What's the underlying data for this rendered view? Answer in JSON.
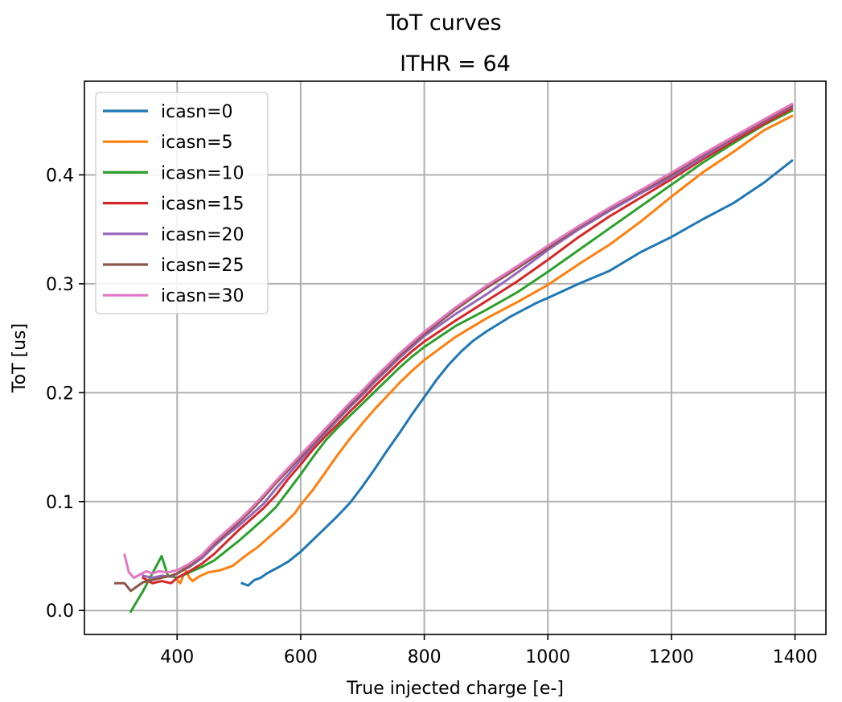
{
  "suptitle": "ToT curves",
  "chart_data": {
    "type": "line",
    "title": "ITHR = 64",
    "xlabel": "True injected charge [e-]",
    "ylabel": "ToT [us]",
    "xlim": [
      250,
      1450
    ],
    "ylim": [
      -0.022,
      0.486
    ],
    "xticks": [
      400,
      600,
      800,
      1000,
      1200,
      1400
    ],
    "yticks": [
      0.0,
      0.1,
      0.2,
      0.3,
      0.4
    ],
    "ytick_labels": [
      "0.0",
      "0.1",
      "0.2",
      "0.3",
      "0.4"
    ],
    "grid": true,
    "legend_position": "top-left",
    "series": [
      {
        "name": "icasn=0",
        "color": "#1f77b4",
        "points": [
          [
            505,
            0.025
          ],
          [
            515,
            0.023
          ],
          [
            525,
            0.028
          ],
          [
            535,
            0.03
          ],
          [
            545,
            0.034
          ],
          [
            565,
            0.04
          ],
          [
            580,
            0.045
          ],
          [
            600,
            0.054
          ],
          [
            620,
            0.065
          ],
          [
            640,
            0.076
          ],
          [
            660,
            0.087
          ],
          [
            680,
            0.099
          ],
          [
            700,
            0.114
          ],
          [
            720,
            0.13
          ],
          [
            740,
            0.147
          ],
          [
            760,
            0.163
          ],
          [
            780,
            0.18
          ],
          [
            800,
            0.196
          ],
          [
            820,
            0.212
          ],
          [
            840,
            0.226
          ],
          [
            860,
            0.238
          ],
          [
            880,
            0.248
          ],
          [
            900,
            0.256
          ],
          [
            920,
            0.263
          ],
          [
            940,
            0.27
          ],
          [
            960,
            0.276
          ],
          [
            980,
            0.282
          ],
          [
            1000,
            0.287
          ],
          [
            1050,
            0.3
          ],
          [
            1100,
            0.312
          ],
          [
            1150,
            0.329
          ],
          [
            1200,
            0.343
          ],
          [
            1250,
            0.359
          ],
          [
            1300,
            0.374
          ],
          [
            1350,
            0.393
          ],
          [
            1395,
            0.413
          ]
        ]
      },
      {
        "name": "icasn=5",
        "color": "#ff7f0e",
        "points": [
          [
            400,
            0.028
          ],
          [
            405,
            0.025
          ],
          [
            410,
            0.032
          ],
          [
            415,
            0.036
          ],
          [
            420,
            0.03
          ],
          [
            425,
            0.027
          ],
          [
            435,
            0.031
          ],
          [
            450,
            0.035
          ],
          [
            470,
            0.037
          ],
          [
            490,
            0.041
          ],
          [
            510,
            0.05
          ],
          [
            530,
            0.058
          ],
          [
            550,
            0.068
          ],
          [
            570,
            0.078
          ],
          [
            590,
            0.089
          ],
          [
            600,
            0.097
          ],
          [
            620,
            0.111
          ],
          [
            640,
            0.127
          ],
          [
            660,
            0.143
          ],
          [
            680,
            0.158
          ],
          [
            700,
            0.172
          ],
          [
            720,
            0.185
          ],
          [
            740,
            0.197
          ],
          [
            760,
            0.209
          ],
          [
            780,
            0.22
          ],
          [
            800,
            0.23
          ],
          [
            850,
            0.251
          ],
          [
            900,
            0.268
          ],
          [
            950,
            0.283
          ],
          [
            1000,
            0.299
          ],
          [
            1050,
            0.318
          ],
          [
            1100,
            0.336
          ],
          [
            1150,
            0.357
          ],
          [
            1200,
            0.38
          ],
          [
            1250,
            0.402
          ],
          [
            1300,
            0.421
          ],
          [
            1350,
            0.441
          ],
          [
            1395,
            0.454
          ]
        ]
      },
      {
        "name": "icasn=10",
        "color": "#2ca02c",
        "points": [
          [
            325,
            -0.001
          ],
          [
            345,
            0.018
          ],
          [
            360,
            0.034
          ],
          [
            375,
            0.05
          ],
          [
            385,
            0.032
          ],
          [
            400,
            0.03
          ],
          [
            420,
            0.035
          ],
          [
            440,
            0.04
          ],
          [
            460,
            0.046
          ],
          [
            480,
            0.055
          ],
          [
            500,
            0.064
          ],
          [
            520,
            0.074
          ],
          [
            540,
            0.084
          ],
          [
            560,
            0.095
          ],
          [
            580,
            0.11
          ],
          [
            600,
            0.125
          ],
          [
            620,
            0.141
          ],
          [
            640,
            0.156
          ],
          [
            660,
            0.168
          ],
          [
            680,
            0.179
          ],
          [
            700,
            0.19
          ],
          [
            720,
            0.201
          ],
          [
            740,
            0.212
          ],
          [
            760,
            0.223
          ],
          [
            780,
            0.233
          ],
          [
            800,
            0.242
          ],
          [
            850,
            0.261
          ],
          [
            900,
            0.276
          ],
          [
            950,
            0.292
          ],
          [
            1000,
            0.311
          ],
          [
            1050,
            0.331
          ],
          [
            1100,
            0.351
          ],
          [
            1150,
            0.371
          ],
          [
            1200,
            0.391
          ],
          [
            1250,
            0.411
          ],
          [
            1300,
            0.429
          ],
          [
            1350,
            0.446
          ],
          [
            1395,
            0.459
          ]
        ]
      },
      {
        "name": "icasn=15",
        "color": "#d62728",
        "points": [
          [
            345,
            0.03
          ],
          [
            360,
            0.025
          ],
          [
            375,
            0.027
          ],
          [
            390,
            0.025
          ],
          [
            400,
            0.03
          ],
          [
            420,
            0.036
          ],
          [
            440,
            0.043
          ],
          [
            460,
            0.052
          ],
          [
            480,
            0.063
          ],
          [
            500,
            0.074
          ],
          [
            520,
            0.084
          ],
          [
            540,
            0.094
          ],
          [
            560,
            0.106
          ],
          [
            580,
            0.121
          ],
          [
            600,
            0.134
          ],
          [
            620,
            0.148
          ],
          [
            640,
            0.16
          ],
          [
            660,
            0.171
          ],
          [
            680,
            0.183
          ],
          [
            700,
            0.194
          ],
          [
            720,
            0.206
          ],
          [
            740,
            0.217
          ],
          [
            760,
            0.228
          ],
          [
            780,
            0.238
          ],
          [
            800,
            0.247
          ],
          [
            850,
            0.266
          ],
          [
            900,
            0.284
          ],
          [
            950,
            0.302
          ],
          [
            1000,
            0.322
          ],
          [
            1050,
            0.343
          ],
          [
            1100,
            0.362
          ],
          [
            1150,
            0.379
          ],
          [
            1200,
            0.396
          ],
          [
            1250,
            0.414
          ],
          [
            1300,
            0.431
          ],
          [
            1350,
            0.447
          ],
          [
            1395,
            0.461
          ]
        ]
      },
      {
        "name": "icasn=20",
        "color": "#9467bd",
        "points": [
          [
            345,
            0.032
          ],
          [
            360,
            0.03
          ],
          [
            375,
            0.032
          ],
          [
            390,
            0.031
          ],
          [
            400,
            0.034
          ],
          [
            420,
            0.04
          ],
          [
            440,
            0.048
          ],
          [
            460,
            0.059
          ],
          [
            480,
            0.069
          ],
          [
            500,
            0.078
          ],
          [
            520,
            0.088
          ],
          [
            540,
            0.098
          ],
          [
            560,
            0.112
          ],
          [
            580,
            0.125
          ],
          [
            600,
            0.138
          ],
          [
            620,
            0.151
          ],
          [
            640,
            0.163
          ],
          [
            660,
            0.175
          ],
          [
            680,
            0.187
          ],
          [
            700,
            0.198
          ],
          [
            720,
            0.21
          ],
          [
            740,
            0.221
          ],
          [
            760,
            0.232
          ],
          [
            780,
            0.242
          ],
          [
            800,
            0.252
          ],
          [
            850,
            0.272
          ],
          [
            900,
            0.29
          ],
          [
            950,
            0.31
          ],
          [
            1000,
            0.331
          ],
          [
            1050,
            0.35
          ],
          [
            1100,
            0.367
          ],
          [
            1150,
            0.383
          ],
          [
            1200,
            0.398
          ],
          [
            1250,
            0.416
          ],
          [
            1300,
            0.433
          ],
          [
            1350,
            0.449
          ],
          [
            1395,
            0.463
          ]
        ]
      },
      {
        "name": "icasn=25",
        "color": "#8c564b",
        "points": [
          [
            300,
            0.025
          ],
          [
            315,
            0.025
          ],
          [
            325,
            0.018
          ],
          [
            335,
            0.022
          ],
          [
            345,
            0.026
          ],
          [
            360,
            0.028
          ],
          [
            375,
            0.03
          ],
          [
            390,
            0.032
          ],
          [
            400,
            0.034
          ],
          [
            420,
            0.041
          ],
          [
            440,
            0.05
          ],
          [
            460,
            0.061
          ],
          [
            480,
            0.071
          ],
          [
            500,
            0.081
          ],
          [
            520,
            0.092
          ],
          [
            540,
            0.104
          ],
          [
            560,
            0.117
          ],
          [
            580,
            0.129
          ],
          [
            600,
            0.141
          ],
          [
            620,
            0.153
          ],
          [
            640,
            0.165
          ],
          [
            660,
            0.177
          ],
          [
            680,
            0.189
          ],
          [
            700,
            0.2
          ],
          [
            720,
            0.212
          ],
          [
            740,
            0.223
          ],
          [
            760,
            0.234
          ],
          [
            780,
            0.244
          ],
          [
            800,
            0.254
          ],
          [
            850,
            0.276
          ],
          [
            900,
            0.296
          ],
          [
            950,
            0.314
          ],
          [
            1000,
            0.333
          ],
          [
            1050,
            0.352
          ],
          [
            1100,
            0.369
          ],
          [
            1150,
            0.385
          ],
          [
            1200,
            0.4
          ],
          [
            1250,
            0.418
          ],
          [
            1300,
            0.434
          ],
          [
            1350,
            0.45
          ],
          [
            1395,
            0.464
          ]
        ]
      },
      {
        "name": "icasn=30",
        "color": "#e377c2",
        "points": [
          [
            315,
            0.051
          ],
          [
            322,
            0.035
          ],
          [
            330,
            0.03
          ],
          [
            340,
            0.033
          ],
          [
            350,
            0.036
          ],
          [
            360,
            0.034
          ],
          [
            370,
            0.036
          ],
          [
            385,
            0.035
          ],
          [
            400,
            0.037
          ],
          [
            420,
            0.043
          ],
          [
            440,
            0.051
          ],
          [
            460,
            0.063
          ],
          [
            480,
            0.073
          ],
          [
            500,
            0.083
          ],
          [
            520,
            0.094
          ],
          [
            540,
            0.106
          ],
          [
            560,
            0.119
          ],
          [
            580,
            0.131
          ],
          [
            600,
            0.143
          ],
          [
            620,
            0.155
          ],
          [
            640,
            0.167
          ],
          [
            660,
            0.179
          ],
          [
            680,
            0.191
          ],
          [
            700,
            0.202
          ],
          [
            720,
            0.214
          ],
          [
            740,
            0.225
          ],
          [
            760,
            0.236
          ],
          [
            780,
            0.246
          ],
          [
            800,
            0.256
          ],
          [
            850,
            0.278
          ],
          [
            900,
            0.298
          ],
          [
            950,
            0.316
          ],
          [
            1000,
            0.335
          ],
          [
            1050,
            0.353
          ],
          [
            1100,
            0.37
          ],
          [
            1150,
            0.386
          ],
          [
            1200,
            0.402
          ],
          [
            1250,
            0.419
          ],
          [
            1300,
            0.435
          ],
          [
            1350,
            0.451
          ],
          [
            1395,
            0.465
          ]
        ]
      }
    ]
  }
}
